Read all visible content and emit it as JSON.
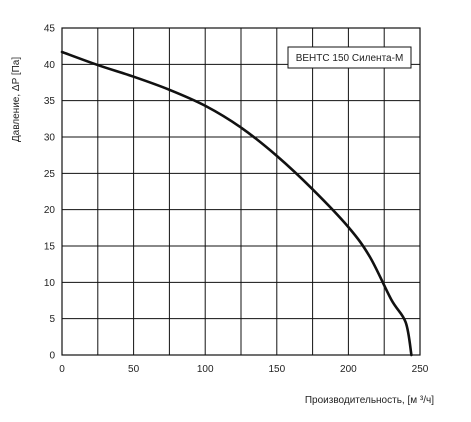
{
  "chart_data": {
    "type": "line",
    "xlabel": "Производительность, [м ³/ч]",
    "ylabel": "Давление, ΔP [Па]",
    "xlim": [
      0,
      250
    ],
    "ylim": [
      0,
      45
    ],
    "x_ticks": [
      0,
      25,
      50,
      75,
      100,
      125,
      150,
      175,
      200,
      225,
      250
    ],
    "x_tick_labels": [
      "0",
      "",
      "50",
      "",
      "100",
      "",
      "150",
      "",
      "200",
      "",
      "250"
    ],
    "y_ticks": [
      0,
      5,
      10,
      15,
      20,
      25,
      30,
      35,
      40,
      45
    ],
    "y_tick_labels": [
      "0",
      "5",
      "10",
      "15",
      "20",
      "25",
      "30",
      "35",
      "40",
      "45"
    ],
    "grid": true,
    "legend_position": "top-right",
    "series": [
      {
        "name": "ВЕНТС 150 Силента-М",
        "color": "#111111",
        "x": [
          0,
          25,
          50,
          75,
          100,
          125,
          150,
          175,
          200,
          215,
          230,
          240,
          244
        ],
        "y": [
          41.7,
          39.9,
          38.3,
          36.5,
          34.3,
          31.3,
          27.4,
          22.8,
          17.6,
          13.5,
          7.6,
          4.5,
          0
        ]
      }
    ]
  }
}
